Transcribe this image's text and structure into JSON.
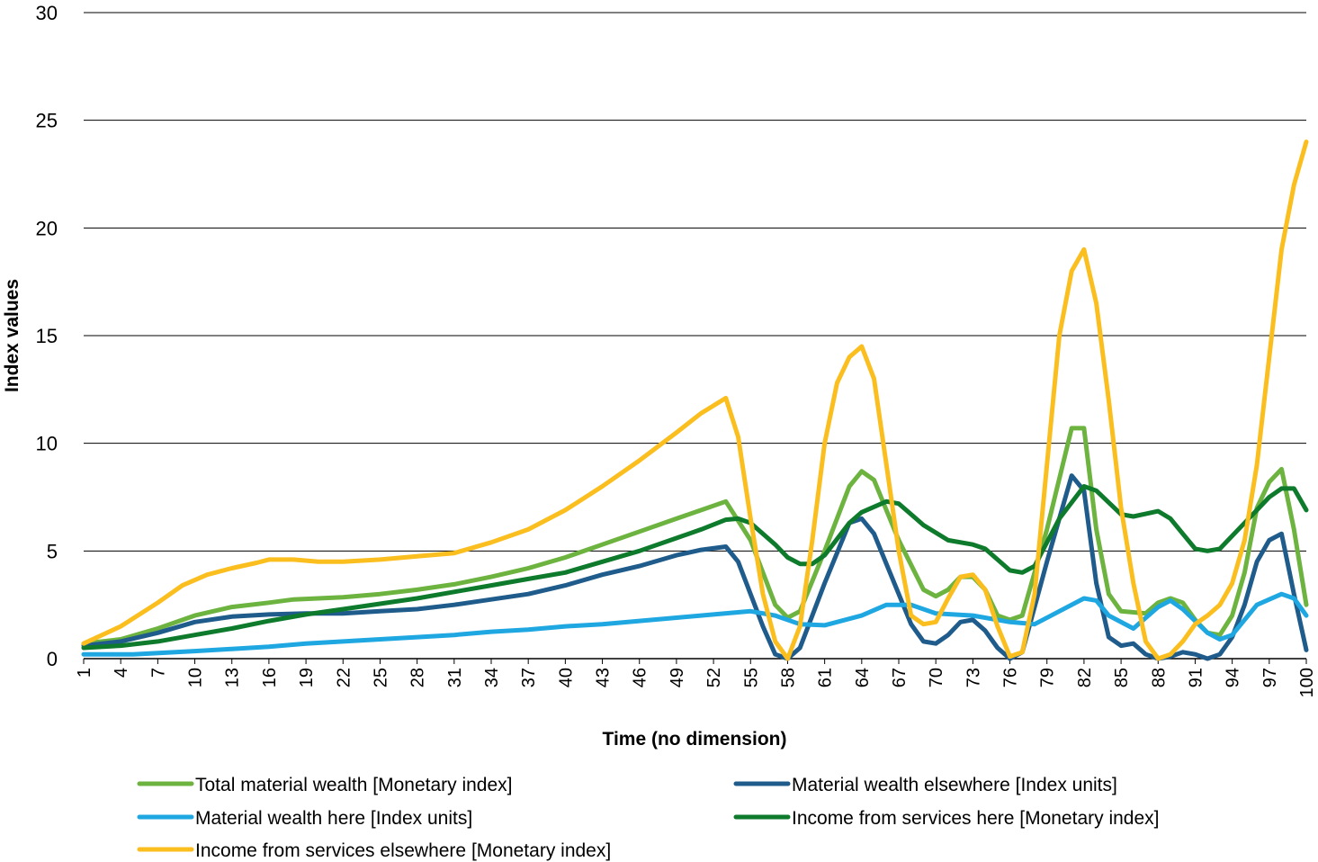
{
  "chart_data": {
    "type": "line",
    "title": "",
    "xlabel": "Time (no dimension)",
    "ylabel": "Index values",
    "ylim": [
      0,
      30
    ],
    "yticks": [
      0,
      5,
      10,
      15,
      20,
      25,
      30
    ],
    "xlim": [
      1,
      100
    ],
    "xticks": [
      1,
      4,
      7,
      10,
      13,
      16,
      19,
      22,
      25,
      28,
      31,
      34,
      37,
      40,
      43,
      46,
      49,
      52,
      55,
      58,
      61,
      64,
      67,
      70,
      73,
      76,
      79,
      82,
      85,
      88,
      91,
      94,
      97,
      100
    ],
    "grid": "horizontal",
    "legend_position": "bottom",
    "series": [
      {
        "name": "Total material wealth [Monetary index]",
        "color": "#6db33f",
        "points": [
          [
            1,
            0.7
          ],
          [
            4,
            0.9
          ],
          [
            7,
            1.4
          ],
          [
            10,
            2.0
          ],
          [
            13,
            2.4
          ],
          [
            16,
            2.6
          ],
          [
            18,
            2.75
          ],
          [
            22,
            2.85
          ],
          [
            25,
            3.0
          ],
          [
            28,
            3.2
          ],
          [
            31,
            3.45
          ],
          [
            34,
            3.8
          ],
          [
            37,
            4.2
          ],
          [
            40,
            4.7
          ],
          [
            43,
            5.3
          ],
          [
            46,
            5.9
          ],
          [
            49,
            6.5
          ],
          [
            51,
            6.9
          ],
          [
            53,
            7.3
          ],
          [
            55,
            5.5
          ],
          [
            57,
            2.5
          ],
          [
            58,
            1.9
          ],
          [
            59,
            2.2
          ],
          [
            61,
            5.0
          ],
          [
            63,
            8.0
          ],
          [
            64,
            8.7
          ],
          [
            65,
            8.3
          ],
          [
            67,
            5.5
          ],
          [
            69,
            3.2
          ],
          [
            70,
            2.9
          ],
          [
            71,
            3.2
          ],
          [
            72,
            3.8
          ],
          [
            73,
            3.8
          ],
          [
            74,
            3.2
          ],
          [
            75,
            2.0
          ],
          [
            76,
            1.8
          ],
          [
            77,
            2.0
          ],
          [
            79,
            6.0
          ],
          [
            81,
            10.7
          ],
          [
            82,
            10.7
          ],
          [
            83,
            6.0
          ],
          [
            84,
            3.0
          ],
          [
            85,
            2.2
          ],
          [
            87,
            2.1
          ],
          [
            88,
            2.6
          ],
          [
            89,
            2.8
          ],
          [
            90,
            2.6
          ],
          [
            91,
            1.8
          ],
          [
            92,
            1.2
          ],
          [
            93,
            1.1
          ],
          [
            94,
            2.0
          ],
          [
            95,
            4.0
          ],
          [
            96,
            7.0
          ],
          [
            97,
            8.2
          ],
          [
            98,
            8.8
          ],
          [
            99,
            6.0
          ],
          [
            100,
            2.5
          ]
        ]
      },
      {
        "name": "Material wealth elsewhere [Index units]",
        "color": "#1f5c8b",
        "points": [
          [
            1,
            0.6
          ],
          [
            4,
            0.8
          ],
          [
            7,
            1.2
          ],
          [
            10,
            1.7
          ],
          [
            13,
            1.95
          ],
          [
            16,
            2.05
          ],
          [
            19,
            2.1
          ],
          [
            22,
            2.1
          ],
          [
            25,
            2.2
          ],
          [
            28,
            2.3
          ],
          [
            31,
            2.5
          ],
          [
            34,
            2.75
          ],
          [
            37,
            3.0
          ],
          [
            40,
            3.4
          ],
          [
            43,
            3.9
          ],
          [
            46,
            4.3
          ],
          [
            49,
            4.8
          ],
          [
            51,
            5.05
          ],
          [
            53,
            5.2
          ],
          [
            54,
            4.5
          ],
          [
            56,
            1.5
          ],
          [
            57,
            0.2
          ],
          [
            58,
            0.0
          ],
          [
            59,
            0.5
          ],
          [
            61,
            3.5
          ],
          [
            63,
            6.3
          ],
          [
            64,
            6.5
          ],
          [
            65,
            5.8
          ],
          [
            67,
            3.0
          ],
          [
            68,
            1.6
          ],
          [
            69,
            0.8
          ],
          [
            70,
            0.7
          ],
          [
            71,
            1.1
          ],
          [
            72,
            1.7
          ],
          [
            73,
            1.8
          ],
          [
            74,
            1.3
          ],
          [
            75,
            0.5
          ],
          [
            76,
            0.0
          ],
          [
            77,
            0.3
          ],
          [
            79,
            4.5
          ],
          [
            81,
            8.5
          ],
          [
            82,
            7.8
          ],
          [
            83,
            3.5
          ],
          [
            84,
            1.0
          ],
          [
            85,
            0.6
          ],
          [
            86,
            0.7
          ],
          [
            87,
            0.2
          ],
          [
            88,
            0.0
          ],
          [
            89,
            0.1
          ],
          [
            90,
            0.3
          ],
          [
            91,
            0.2
          ],
          [
            92,
            0.0
          ],
          [
            93,
            0.2
          ],
          [
            94,
            1.0
          ],
          [
            95,
            2.5
          ],
          [
            96,
            4.5
          ],
          [
            97,
            5.5
          ],
          [
            98,
            5.8
          ],
          [
            99,
            3.0
          ],
          [
            100,
            0.4
          ]
        ]
      },
      {
        "name": "Material wealth here [Index units]",
        "color": "#1ea7e1",
        "points": [
          [
            1,
            0.2
          ],
          [
            5,
            0.2
          ],
          [
            10,
            0.35
          ],
          [
            13,
            0.45
          ],
          [
            16,
            0.55
          ],
          [
            19,
            0.7
          ],
          [
            22,
            0.8
          ],
          [
            25,
            0.9
          ],
          [
            28,
            1.0
          ],
          [
            31,
            1.1
          ],
          [
            34,
            1.25
          ],
          [
            37,
            1.35
          ],
          [
            40,
            1.5
          ],
          [
            43,
            1.6
          ],
          [
            46,
            1.75
          ],
          [
            49,
            1.9
          ],
          [
            52,
            2.05
          ],
          [
            55,
            2.2
          ],
          [
            57,
            2.0
          ],
          [
            59,
            1.6
          ],
          [
            61,
            1.55
          ],
          [
            64,
            2.0
          ],
          [
            66,
            2.5
          ],
          [
            68,
            2.5
          ],
          [
            70,
            2.1
          ],
          [
            73,
            2.0
          ],
          [
            76,
            1.7
          ],
          [
            78,
            1.6
          ],
          [
            80,
            2.2
          ],
          [
            82,
            2.8
          ],
          [
            83,
            2.7
          ],
          [
            84,
            2.0
          ],
          [
            86,
            1.4
          ],
          [
            88,
            2.4
          ],
          [
            89,
            2.7
          ],
          [
            90,
            2.3
          ],
          [
            92,
            1.2
          ],
          [
            93,
            0.9
          ],
          [
            94,
            1.1
          ],
          [
            96,
            2.5
          ],
          [
            98,
            3.0
          ],
          [
            99,
            2.8
          ],
          [
            100,
            2.0
          ]
        ]
      },
      {
        "name": "Income from services here [Monetary index]",
        "color": "#0e7a2c",
        "points": [
          [
            1,
            0.5
          ],
          [
            4,
            0.6
          ],
          [
            7,
            0.8
          ],
          [
            10,
            1.1
          ],
          [
            13,
            1.4
          ],
          [
            16,
            1.75
          ],
          [
            19,
            2.05
          ],
          [
            22,
            2.3
          ],
          [
            25,
            2.55
          ],
          [
            28,
            2.8
          ],
          [
            31,
            3.1
          ],
          [
            34,
            3.4
          ],
          [
            37,
            3.7
          ],
          [
            40,
            4.0
          ],
          [
            43,
            4.5
          ],
          [
            46,
            5.0
          ],
          [
            49,
            5.6
          ],
          [
            51,
            6.0
          ],
          [
            53,
            6.45
          ],
          [
            54,
            6.5
          ],
          [
            55,
            6.3
          ],
          [
            57,
            5.3
          ],
          [
            58,
            4.7
          ],
          [
            59,
            4.4
          ],
          [
            60,
            4.4
          ],
          [
            61,
            4.8
          ],
          [
            63,
            6.3
          ],
          [
            64,
            6.8
          ],
          [
            66,
            7.3
          ],
          [
            67,
            7.2
          ],
          [
            69,
            6.2
          ],
          [
            71,
            5.5
          ],
          [
            73,
            5.3
          ],
          [
            74,
            5.1
          ],
          [
            76,
            4.1
          ],
          [
            77,
            4.0
          ],
          [
            78,
            4.3
          ],
          [
            80,
            6.5
          ],
          [
            82,
            8.0
          ],
          [
            83,
            7.8
          ],
          [
            85,
            6.7
          ],
          [
            86,
            6.6
          ],
          [
            88,
            6.85
          ],
          [
            89,
            6.5
          ],
          [
            90,
            5.8
          ],
          [
            91,
            5.1
          ],
          [
            92,
            5.0
          ],
          [
            93,
            5.1
          ],
          [
            95,
            6.3
          ],
          [
            97,
            7.5
          ],
          [
            98,
            7.9
          ],
          [
            99,
            7.9
          ],
          [
            100,
            6.9
          ]
        ]
      },
      {
        "name": "Income from services elsewhere [Monetary index]",
        "color": "#fbbe1f",
        "points": [
          [
            1,
            0.7
          ],
          [
            4,
            1.5
          ],
          [
            7,
            2.6
          ],
          [
            9,
            3.4
          ],
          [
            11,
            3.9
          ],
          [
            13,
            4.2
          ],
          [
            15,
            4.45
          ],
          [
            16,
            4.6
          ],
          [
            18,
            4.6
          ],
          [
            20,
            4.5
          ],
          [
            22,
            4.5
          ],
          [
            25,
            4.6
          ],
          [
            28,
            4.75
          ],
          [
            31,
            4.9
          ],
          [
            34,
            5.4
          ],
          [
            37,
            6.0
          ],
          [
            40,
            6.9
          ],
          [
            43,
            8.0
          ],
          [
            46,
            9.2
          ],
          [
            49,
            10.5
          ],
          [
            51,
            11.4
          ],
          [
            53,
            12.1
          ],
          [
            54,
            10.3
          ],
          [
            55,
            6.5
          ],
          [
            56,
            3.0
          ],
          [
            57,
            0.8
          ],
          [
            58,
            0.0
          ],
          [
            59,
            1.5
          ],
          [
            60,
            5.5
          ],
          [
            61,
            10.0
          ],
          [
            62,
            12.8
          ],
          [
            63,
            14.0
          ],
          [
            64,
            14.5
          ],
          [
            65,
            13.0
          ],
          [
            66,
            9.0
          ],
          [
            67,
            5.0
          ],
          [
            68,
            2.0
          ],
          [
            69,
            1.6
          ],
          [
            70,
            1.7
          ],
          [
            71,
            2.8
          ],
          [
            72,
            3.8
          ],
          [
            73,
            3.9
          ],
          [
            74,
            3.2
          ],
          [
            75,
            1.5
          ],
          [
            76,
            0.1
          ],
          [
            77,
            0.3
          ],
          [
            78,
            3.0
          ],
          [
            79,
            9.0
          ],
          [
            80,
            15.0
          ],
          [
            81,
            18.0
          ],
          [
            82,
            19.0
          ],
          [
            83,
            16.5
          ],
          [
            84,
            12.0
          ],
          [
            85,
            7.0
          ],
          [
            86,
            3.5
          ],
          [
            87,
            0.8
          ],
          [
            88,
            0.0
          ],
          [
            89,
            0.2
          ],
          [
            90,
            0.8
          ],
          [
            91,
            1.6
          ],
          [
            92,
            2.0
          ],
          [
            93,
            2.5
          ],
          [
            94,
            3.5
          ],
          [
            95,
            5.5
          ],
          [
            96,
            9.0
          ],
          [
            97,
            14.0
          ],
          [
            98,
            19.0
          ],
          [
            99,
            22.0
          ],
          [
            100,
            24.0
          ]
        ]
      }
    ]
  }
}
